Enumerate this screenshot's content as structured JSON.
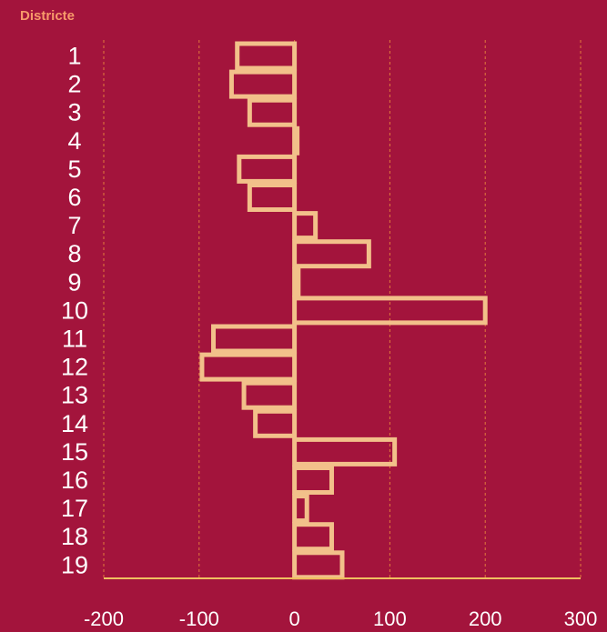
{
  "chart_data": {
    "type": "bar",
    "orientation": "horizontal",
    "title": "Districte",
    "categories": [
      "1",
      "2",
      "3",
      "4",
      "5",
      "6",
      "7",
      "8",
      "9",
      "10",
      "11",
      "12",
      "13",
      "14",
      "15",
      "16",
      "17",
      "18",
      "19"
    ],
    "values": [
      -60,
      -66,
      -47,
      2,
      -58,
      -47,
      22,
      78,
      4,
      200,
      -85,
      -97,
      -53,
      -41,
      105,
      39,
      13,
      39,
      50
    ],
    "x_ticks": [
      "-200",
      "-100",
      "0",
      "100",
      "200",
      "300"
    ],
    "xlim": [
      -200,
      300
    ],
    "grid": "vertical-dashed",
    "legend": "none"
  },
  "colors": {
    "background": "#a3143c",
    "bar_stroke": "#f2c08a",
    "grid": "#e07a3c",
    "axis": "#f0c060",
    "title": "#f79a6a",
    "tick_text": "#ffffff"
  }
}
